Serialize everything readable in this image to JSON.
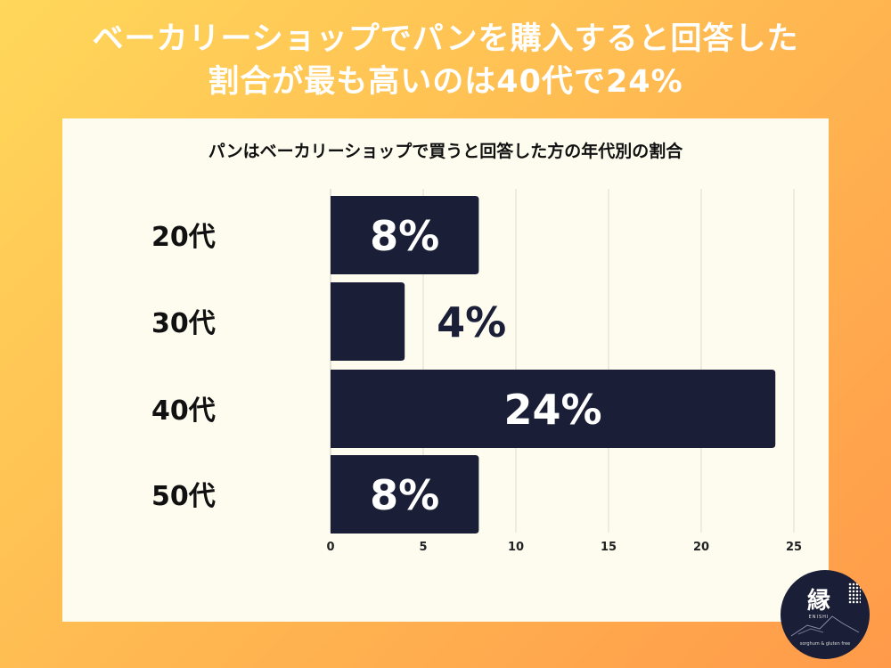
{
  "headline": {
    "line1": "ベーカリーショップでパンを購入すると回答した",
    "line2": "割合が最も高いのは40代で24%"
  },
  "chart_data": {
    "type": "bar",
    "orientation": "horizontal",
    "title": "パンはベーカリーショップで買うと回答した方の年代別の割合",
    "categories": [
      "20代",
      "30代",
      "40代",
      "50代"
    ],
    "values": [
      8,
      4,
      24,
      8
    ],
    "value_labels": [
      "8%",
      "4%",
      "24%",
      "8%"
    ],
    "x_ticks": [
      0,
      5,
      10,
      15,
      20,
      25
    ],
    "xlim": [
      0,
      25
    ],
    "grid": true,
    "bar_color": "#1a1e36"
  },
  "logo": {
    "mark": "縁",
    "sub": "ENISHI",
    "foot": "sorghum & gluten free"
  },
  "colors": {
    "background_start": "#ffd75a",
    "background_end": "#ff9a4a",
    "panel": "#fefcef",
    "bar": "#1a1e36",
    "grid": "#dddad0"
  }
}
